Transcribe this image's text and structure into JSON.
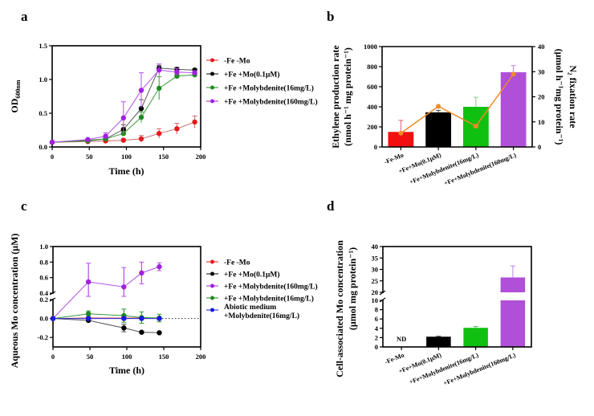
{
  "figure": {
    "panels": [
      "a",
      "b",
      "c",
      "d"
    ]
  },
  "chart_data": [
    {
      "id": "a",
      "type": "line",
      "panel_label": "a",
      "title": "",
      "xlabel": "Time (h)",
      "ylabel": "OD",
      "ylabel_sub": "600nm",
      "xlim": [
        0,
        200
      ],
      "ylim": [
        0,
        1.5
      ],
      "xticks": [
        0,
        50,
        100,
        150,
        200
      ],
      "yticks": [
        "0.0",
        "0.5",
        "1.0",
        "1.5"
      ],
      "ytick_values": [
        0,
        0.5,
        1.0,
        1.5
      ],
      "legend_position": "right",
      "x": [
        0,
        48,
        72,
        96,
        120,
        144,
        168,
        192
      ],
      "series": [
        {
          "name": "-Fe -Mo",
          "color": "#e8181c",
          "line": "#c96a6a",
          "values": [
            0.07,
            0.08,
            0.09,
            0.1,
            0.12,
            0.2,
            0.27,
            0.37
          ],
          "errors": [
            0.01,
            0.01,
            0.01,
            0.02,
            0.05,
            0.07,
            0.08,
            0.09
          ]
        },
        {
          "name": "+Fe +Mo(0.1μM)",
          "color": "#000000",
          "line": "#555555",
          "values": [
            0.07,
            0.1,
            0.12,
            0.26,
            0.57,
            1.17,
            1.15,
            1.14
          ],
          "errors": [
            0.01,
            0.01,
            0.02,
            0.07,
            0.13,
            0.04,
            0.03,
            0.02
          ]
        },
        {
          "name": "+Fe +Molybdenite(16mg/L)",
          "color": "#1e8a1e",
          "line": "#3a9a3a",
          "values": [
            0.07,
            0.09,
            0.12,
            0.2,
            0.44,
            0.87,
            1.05,
            1.07
          ],
          "errors": [
            0.01,
            0.01,
            0.02,
            0.03,
            0.08,
            0.17,
            0.03,
            0.02
          ]
        },
        {
          "name": "+Fe +Molybdenite(160mg/L)",
          "color": "#a020e0",
          "line": "#b050e8",
          "values": [
            0.07,
            0.11,
            0.16,
            0.43,
            0.84,
            1.14,
            1.11,
            1.1
          ],
          "errors": [
            0.01,
            0.01,
            0.05,
            0.24,
            0.26,
            0.09,
            0.05,
            0.03
          ]
        }
      ]
    },
    {
      "id": "b",
      "type": "bar",
      "panel_label": "b",
      "title": "",
      "categories": [
        "-Fe-Mo",
        "+Fe+Mo(0.1μM)",
        "+Fe+Molybdenite(16mg/L)",
        "+Fe+Molybdenite(160mg/L)"
      ],
      "ylabel": "Ethylene production rate",
      "ylabel2_line": "(nmol h⁻¹ mg protein⁻¹)",
      "y2label": "N₂ fixation rate",
      "y2label_line": "(μmol h⁻¹mg protein⁻¹)",
      "ylim": [
        0,
        1000
      ],
      "yticks": [
        0,
        200,
        400,
        600,
        800,
        1000
      ],
      "y2lim": [
        0,
        40
      ],
      "y2ticks": [
        0,
        10,
        20,
        30,
        40
      ],
      "series": [
        {
          "name": "Ethylene production rate",
          "axis": "left",
          "kind": "bar",
          "values": [
            150,
            345,
            400,
            745
          ],
          "errors": [
            115,
            20,
            95,
            65
          ],
          "colors": [
            "#f01010",
            "#000000",
            "#10c010",
            "#b050d8"
          ],
          "error_colors": [
            "#e06070",
            "#444444",
            "#80d080",
            "#c080e0"
          ]
        },
        {
          "name": "N₂ fixation rate",
          "axis": "right",
          "kind": "line",
          "values": [
            5.5,
            16.2,
            8.3,
            29.0
          ],
          "color": "#f08a24"
        }
      ]
    },
    {
      "id": "c",
      "type": "line",
      "panel_label": "c",
      "title": "",
      "xlabel": "Time (h)",
      "ylabel": "Aqueous Mo concentration (μM)",
      "xlim": [
        0,
        200
      ],
      "xticks": [
        0,
        50,
        100,
        150,
        200
      ],
      "ylim": [
        -0.3,
        1.0
      ],
      "axis_break": [
        0.2,
        0.4
      ],
      "yticks_lower": [
        "-0.2",
        "0.0",
        "0.2"
      ],
      "ytick_lower_values": [
        -0.2,
        0.0,
        0.2
      ],
      "yticks_upper": [
        "0.4",
        "0.6",
        "0.8",
        "1.0"
      ],
      "ytick_upper_values": [
        0.4,
        0.6,
        0.8,
        1.0
      ],
      "reference_line": 0.0,
      "legend_position": "right",
      "x": [
        0,
        48,
        96,
        120,
        144
      ],
      "series": [
        {
          "name": "-Fe -Mo",
          "color": "#e8181c",
          "line": "#d04040",
          "values": [
            0.0,
            0.005,
            0.005,
            0.005,
            0.0
          ],
          "errors": [
            0,
            0.01,
            0.01,
            0.01,
            0.01
          ]
        },
        {
          "name": "+Fe +Mo(0.1μM)",
          "color": "#000000",
          "line": "#555555",
          "values": [
            0.0,
            -0.02,
            -0.1,
            -0.145,
            -0.15
          ],
          "errors": [
            0,
            0.01,
            0.04,
            0.01,
            0.01
          ]
        },
        {
          "name": "+Fe +Molybdenite(160mg/L)",
          "color": "#a020e0",
          "line": "#b050e8",
          "values": [
            0.0,
            0.545,
            0.48,
            0.66,
            0.74
          ],
          "errors": [
            0,
            0.24,
            0.25,
            0.14,
            0.05
          ]
        },
        {
          "name": "+Fe +Molybdenite(16mg/L)",
          "color": "#1e8a1e",
          "line": "#3a9a3a",
          "values": [
            0.0,
            0.05,
            0.03,
            0.01,
            0.005
          ],
          "errors": [
            0,
            0.03,
            0.07,
            0.06,
            0.04
          ]
        },
        {
          "name": "Abiotic medium +Molybdenite(16mg/L)",
          "name_line1": "Abiotic medium",
          "name_line2": "+Molybdenite(16mg/L)",
          "color": "#1a1ae0",
          "line": "#3030e0",
          "values": [
            0.0,
            0.0,
            0.0,
            0.0,
            0.0
          ],
          "errors": [
            0,
            0,
            0,
            0,
            0
          ]
        }
      ]
    },
    {
      "id": "d",
      "type": "bar",
      "panel_label": "d",
      "title": "",
      "categories": [
        "-Fe-Mo",
        "+Fe+Mo(0.1μM)",
        "+Fe+Molybdenite(16mg/L)",
        "+Fe+Molybdenite(160mg/L)"
      ],
      "ylabel": "Cell-associated Mo concentration",
      "ylabel_line2": "(μmol mg protein⁻¹)",
      "ylim": [
        0,
        40
      ],
      "axis_break": [
        10,
        20
      ],
      "yticks_lower": [
        0,
        2,
        4,
        6,
        8,
        10
      ],
      "yticks_upper": [
        20,
        25,
        30,
        35,
        40
      ],
      "values": [
        null,
        2.2,
        4.1,
        26.5
      ],
      "errors": [
        null,
        0.1,
        0.3,
        5.0
      ],
      "colors": [
        "#f01010",
        "#000000",
        "#10c010",
        "#b050d8"
      ],
      "error_colors": [
        "#000",
        "#444444",
        "#60c060",
        "#c080e0"
      ],
      "annotations": [
        {
          "category": "-Fe-Mo",
          "text": "ND"
        }
      ]
    }
  ]
}
